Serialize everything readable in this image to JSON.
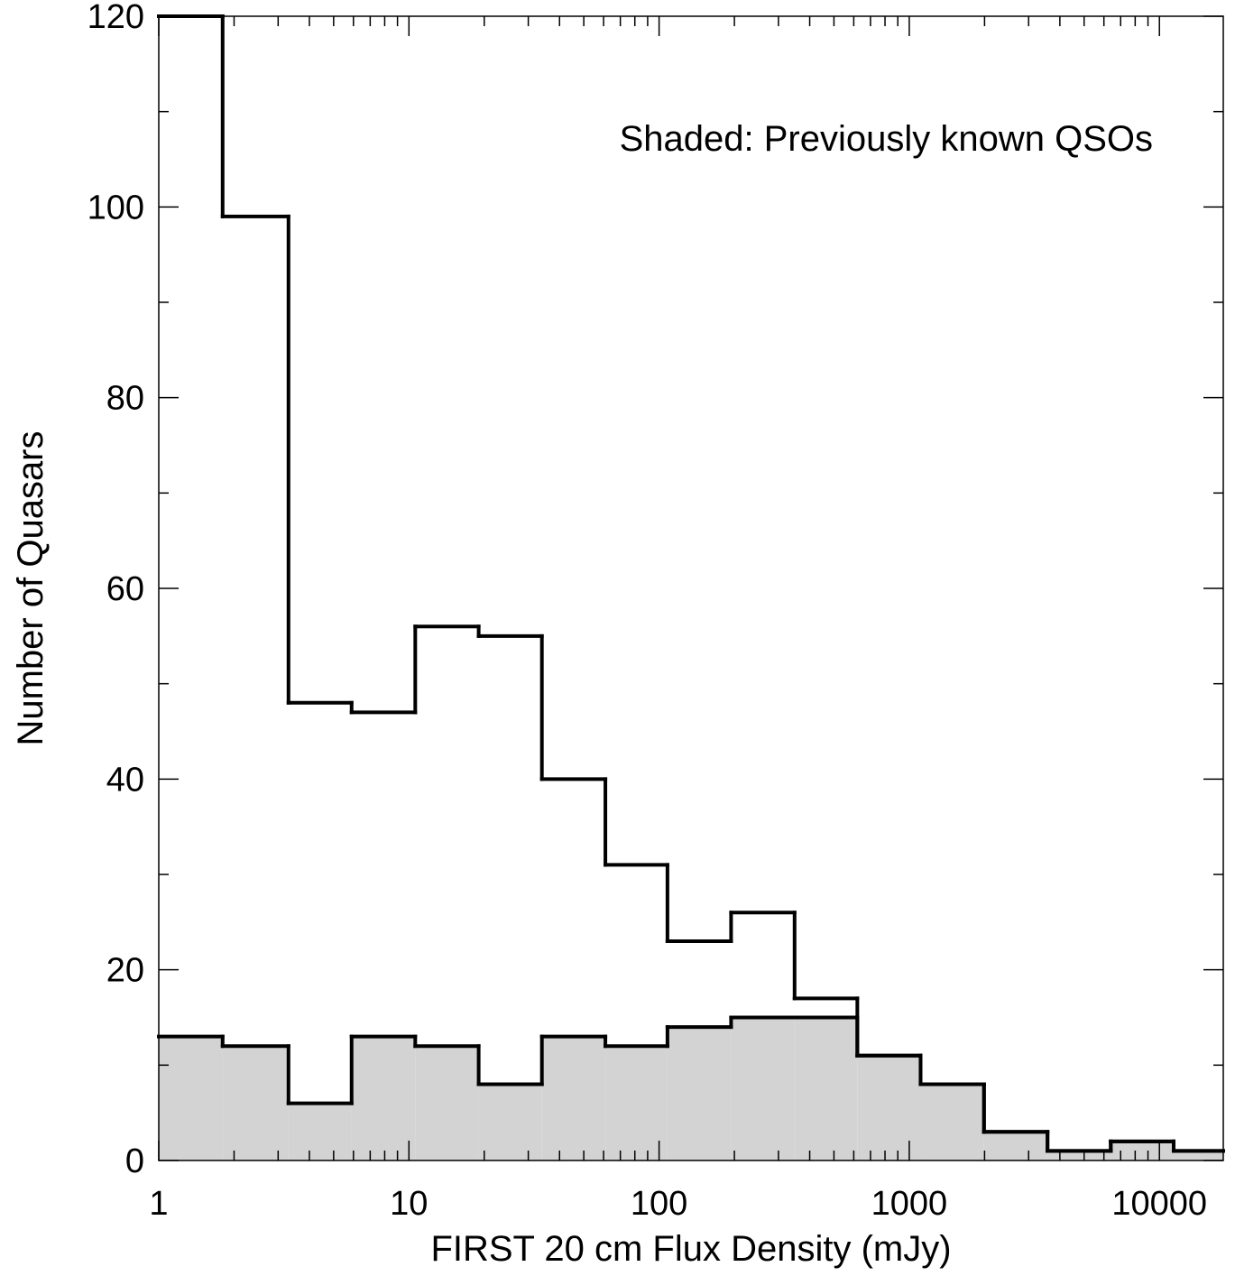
{
  "chart_data": {
    "type": "histogram",
    "xlabel": "FIRST 20 cm Flux Density (mJy)",
    "ylabel": "Number of Quasars",
    "annotation": "Shaded: Previously known QSOs",
    "x_scale": "log",
    "xlim": [
      1,
      18000
    ],
    "ylim": [
      0,
      120
    ],
    "x_ticks": [
      1,
      10,
      100,
      1000,
      10000
    ],
    "x_tick_labels": [
      "1",
      "10",
      "100",
      "1000",
      "10000"
    ],
    "y_ticks": [
      0,
      20,
      40,
      60,
      80,
      100,
      120
    ],
    "y_tick_labels": [
      "0",
      "20",
      "40",
      "60",
      "80",
      "100",
      "120"
    ],
    "bin_edges": [
      1,
      1.8,
      3.3,
      5.9,
      10.6,
      19,
      34,
      61,
      108,
      194,
      348,
      620,
      1110,
      1990,
      3570,
      6390,
      11400,
      18000
    ],
    "series": [
      {
        "style": "outline",
        "values": [
          120,
          99,
          48,
          47,
          56,
          55,
          40,
          31,
          23,
          26,
          17,
          11,
          8,
          3,
          1,
          2,
          1
        ]
      },
      {
        "style": "shaded",
        "fill": "#d3d3d3",
        "values": [
          13,
          12,
          6,
          13,
          12,
          8,
          13,
          12,
          14,
          15,
          15,
          11,
          8,
          3,
          1,
          2,
          1
        ]
      }
    ]
  }
}
